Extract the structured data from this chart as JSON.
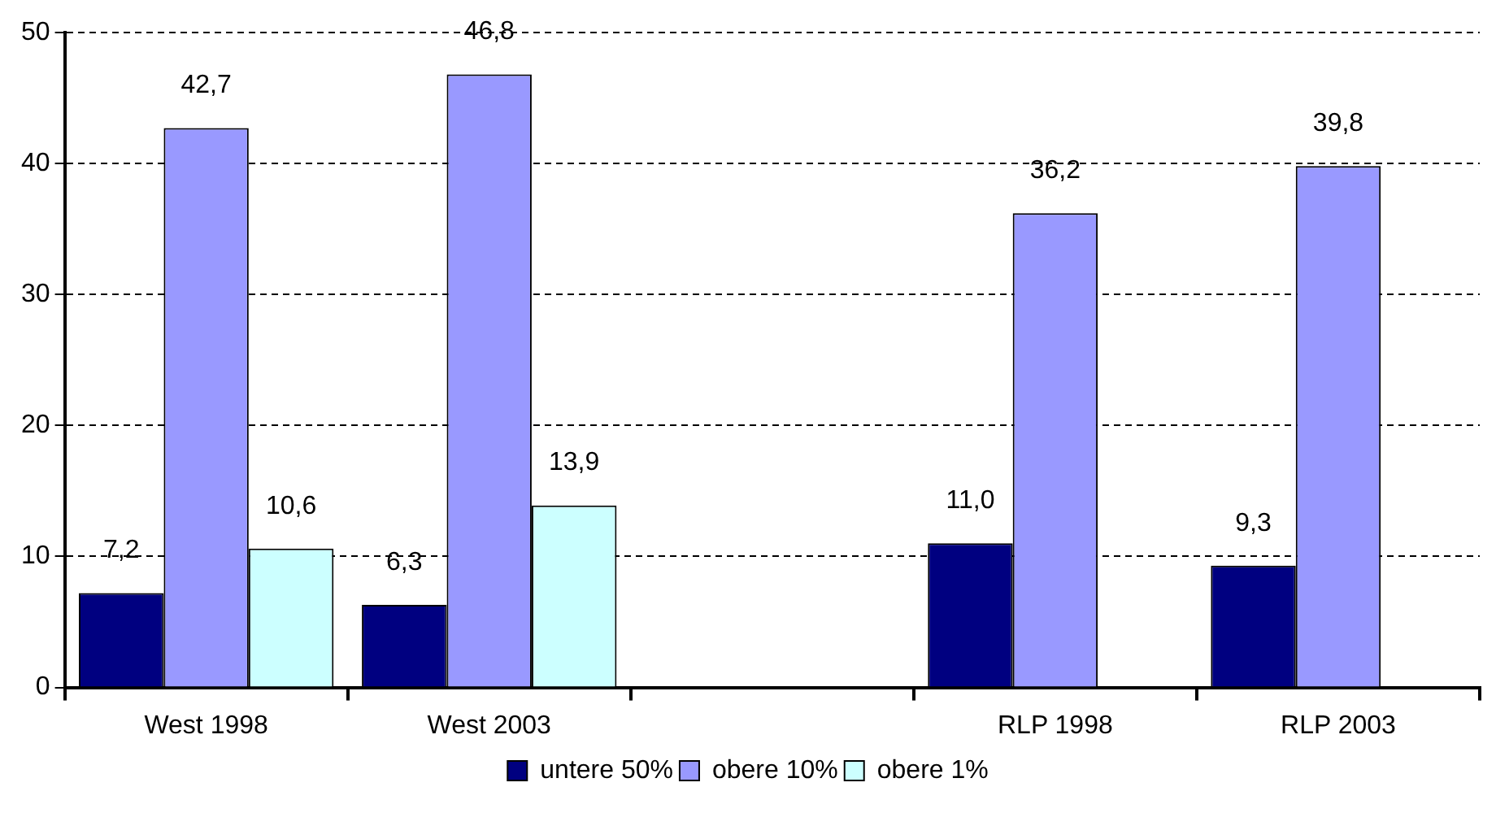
{
  "chart_data": {
    "type": "bar",
    "categories": [
      "West 1998",
      "West 2003",
      null,
      "RLP 1998",
      "RLP 2003"
    ],
    "series": [
      {
        "name": "untere 50%",
        "color": "#000080",
        "values": [
          7.2,
          6.3,
          null,
          11.0,
          9.3
        ],
        "value_labels": [
          "7,2",
          "6,3",
          null,
          "11,0",
          "9,3"
        ]
      },
      {
        "name": "obere 10%",
        "color": "#9999ff",
        "values": [
          42.7,
          46.8,
          null,
          36.2,
          39.8
        ],
        "value_labels": [
          "42,7",
          "46,8",
          null,
          "36,2",
          "39,8"
        ]
      },
      {
        "name": "obere 1%",
        "color": "#ccffff",
        "values": [
          10.6,
          13.9,
          null,
          null,
          null
        ],
        "value_labels": [
          "10,6",
          "13,9",
          null,
          null,
          null
        ]
      }
    ],
    "ylim": [
      0,
      50
    ],
    "yticks": [
      0,
      10,
      20,
      30,
      40,
      50
    ],
    "grid": "y",
    "legend": "bottom"
  }
}
